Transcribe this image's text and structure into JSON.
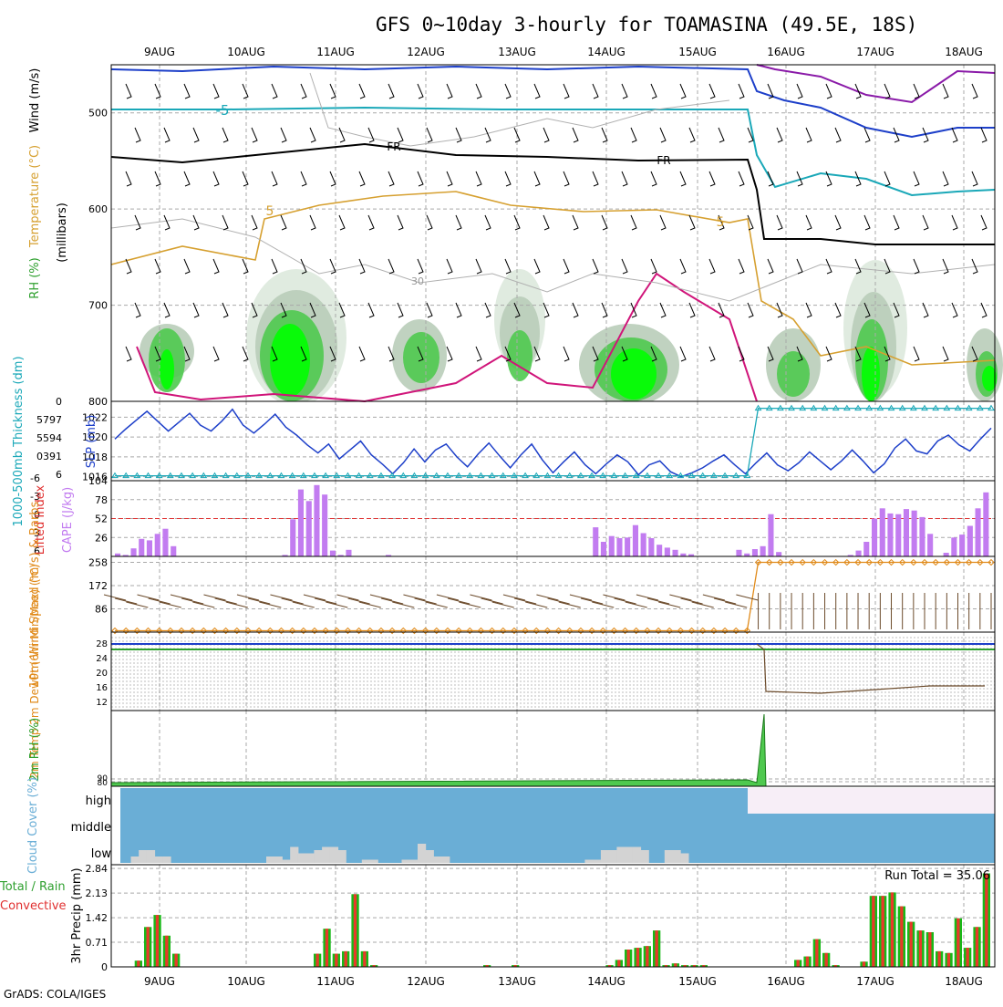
{
  "title": "GFS 0~10day 3-hourly for TOAMASINA (49.5E, 18S)",
  "footer": "GrADS: COLA/IGES",
  "colors": {
    "grid": "#a9a9a9",
    "temp_blue": "#1d3fc9",
    "cyan": "#1aa8b8",
    "orange": "#d6a030",
    "magenta": "#d0157a",
    "purple": "#8a1aa8",
    "cape": "#c27cf0",
    "precip_green": "#18b918",
    "precip_red": "#e83a2a",
    "rh_bright": "#00ff00",
    "rh_mid": "#4fc94f",
    "rh_gray": "#b9cdb9",
    "rh_light": "#dde9dd",
    "cloud_blue": "#6aaed6",
    "cloud_gray": "#d3d3d3",
    "cloud_pink": "#f7eef7",
    "wind_orange": "#e08a1a",
    "barb_brown": "#6b4a2a"
  },
  "chart_data": [
    {
      "type": "line",
      "panel": "upper-air",
      "title": "",
      "ylabel": "(millibars)",
      "side_labels": [
        "Wind (m/s)",
        "Temperature (°C)",
        "RH (%)"
      ],
      "x": [
        "9AUG",
        "10AUG",
        "11AUG",
        "12AUG",
        "13AUG",
        "14AUG",
        "15AUG",
        "16AUG",
        "17AUG",
        "18AUG"
      ],
      "yticks": [
        "500",
        "600",
        "700",
        "800"
      ],
      "ylim": [
        800,
        450
      ],
      "contour_labels": [
        "-5",
        "FR",
        "FR",
        "5",
        "5",
        "30"
      ]
    },
    {
      "type": "line",
      "panel": "slp-thickness",
      "ylabel": "SLP (mb)",
      "ylabel2": "1000-500mb Thickness (dm)",
      "yticks": [
        "1016",
        "1018",
        "1020",
        "1022"
      ],
      "ylim": [
        1015.6,
        1023.6
      ],
      "yticks2": [
        "0",
        "5797",
        "5594",
        "0391",
        "6"
      ],
      "series": [
        {
          "name": "SLP",
          "values": [
            1019.8,
            1020.8,
            1021.7,
            1022.6,
            1021.6,
            1020.6,
            1021.5,
            1022.4,
            1021.2,
            1020.6,
            1021.6,
            1022.8,
            1021.2,
            1020.4,
            1021.3,
            1022.3,
            1021.0,
            1020.2,
            1019.2,
            1018.4,
            1019.3,
            1017.8,
            1018.7,
            1019.6,
            1018.2,
            1017.3,
            1016.3,
            1017.4,
            1018.8,
            1017.5,
            1018.7,
            1019.3,
            1018.0,
            1017.0,
            1018.3,
            1019.4,
            1018.1,
            1016.9,
            1018.2,
            1019.3,
            1017.7,
            1016.4,
            1017.5,
            1018.5,
            1017.2,
            1016.3,
            1017.3,
            1018.2,
            1017.5,
            1016.2,
            1017.2,
            1017.6,
            1016.5,
            1016.0,
            1016.4,
            1016.9,
            1017.6,
            1018.2,
            1017.2,
            1016.3,
            1017.4,
            1018.4,
            1017.2,
            1016.6,
            1017.4,
            1018.5,
            1017.6,
            1016.7,
            1017.6,
            1018.7,
            1017.6,
            1016.4,
            1017.3,
            1018.9,
            1019.8,
            1018.6,
            1018.3,
            1019.6,
            1020.2,
            1019.2,
            1018.6,
            1019.8,
            1020.9
          ]
        },
        {
          "name": "Thickness",
          "values_stage1": 1016.1,
          "values_stage2": 1022.9,
          "jump_index": 58
        }
      ]
    },
    {
      "type": "bar",
      "panel": "cape-li",
      "ylabel": "CAPE (J/kg)",
      "ylabel2": "Lifted Index",
      "yticks": [
        "26",
        "52",
        "78",
        "104"
      ],
      "yticks2": [
        "6",
        "3",
        "0",
        "-3",
        "-6"
      ],
      "ylim": [
        0,
        104
      ],
      "values": [
        4,
        2,
        11,
        24,
        22,
        31,
        38,
        14,
        0,
        0,
        0,
        0,
        0,
        0,
        0,
        0,
        0,
        0,
        0,
        0,
        0,
        2,
        51,
        92,
        76,
        98,
        85,
        8,
        2,
        9,
        0,
        0,
        0,
        0,
        2,
        0,
        0,
        0,
        0,
        0,
        0,
        0,
        0,
        0,
        0,
        0,
        0,
        0,
        0,
        0,
        0,
        0,
        0,
        0,
        0,
        0,
        0,
        0,
        0,
        0,
        40,
        20,
        28,
        25,
        26,
        43,
        32,
        25,
        16,
        12,
        9,
        4,
        3,
        0,
        0,
        0,
        0,
        0,
        9,
        4,
        10,
        14,
        58,
        6,
        0,
        0,
        0,
        0,
        0,
        0,
        0,
        0,
        2,
        8,
        20,
        52,
        66,
        59,
        58,
        65,
        63,
        54,
        31,
        0,
        5,
        26,
        30,
        42,
        66,
        88
      ],
      "li_markers": [
        0,
        0,
        0,
        0,
        0,
        0,
        0,
        0,
        0,
        0,
        0,
        0,
        0,
        0,
        0,
        0,
        0,
        0,
        0,
        0,
        0,
        0,
        0,
        0,
        0,
        0,
        0,
        0,
        0,
        0,
        0,
        0,
        0,
        0,
        0,
        0,
        0,
        0,
        0,
        0,
        0,
        0,
        0,
        0,
        0,
        0,
        0,
        0,
        0,
        0,
        0,
        0,
        0,
        0,
        0,
        0,
        0,
        0,
        0,
        0,
        0,
        0,
        0,
        0,
        0,
        0,
        0,
        0,
        0,
        0,
        0,
        0,
        0,
        0,
        0,
        0,
        0,
        0,
        0,
        0,
        0,
        0,
        0,
        0,
        0,
        0,
        0,
        0,
        0,
        0,
        0,
        0,
        0,
        0,
        0,
        0,
        0,
        0,
        0,
        0,
        0,
        0,
        0,
        0,
        0,
        0,
        0,
        0,
        0,
        0,
        0
      ]
    },
    {
      "type": "line",
      "panel": "wind10m",
      "ylabel": "10m Wind Speed (m/s) & Barbs",
      "yticks": [
        "86",
        "172",
        "258"
      ],
      "ylim": [
        0,
        280
      ],
      "series": [
        {
          "name": "Speed",
          "values_stage1": 5,
          "values_stage2": 258,
          "jump_index": 58
        }
      ]
    },
    {
      "type": "line",
      "panel": "temp2m",
      "ylabel": "2m Temp 2m DewPt (6hr Min/Max) (°C)",
      "yticks": [
        "12",
        "16",
        "20",
        "24",
        "28"
      ]
    },
    {
      "type": "area",
      "panel": "rh2m",
      "ylabel": "2m RH (%)",
      "yticks": [
        "80",
        "90"
      ]
    },
    {
      "type": "bar",
      "panel": "cloud",
      "ylabel": "Cloud Cover (%)",
      "levels": [
        "high",
        "middle",
        "low"
      ],
      "low_values": [
        0,
        0,
        10,
        20,
        20,
        10,
        10,
        0,
        0,
        0,
        0,
        0,
        0,
        0,
        0,
        0,
        0,
        0,
        0,
        10,
        10,
        5,
        25,
        15,
        15,
        20,
        25,
        25,
        20,
        0,
        0,
        5,
        5,
        0,
        0,
        0,
        5,
        5,
        30,
        20,
        10,
        10,
        0,
        0,
        0,
        0,
        0,
        0,
        0,
        0,
        0,
        0,
        0,
        0,
        0,
        0,
        0,
        0,
        0,
        5,
        5,
        20,
        20,
        25,
        25,
        25,
        20,
        0,
        0,
        20,
        20,
        15,
        0,
        0,
        0,
        0,
        0,
        0,
        0,
        0,
        0,
        0,
        0,
        0,
        0,
        0,
        0,
        0,
        0,
        0,
        0,
        0,
        0,
        0,
        0,
        0,
        0,
        0,
        0,
        0,
        0,
        0,
        0,
        0,
        0,
        0,
        0,
        0,
        0,
        0
      ]
    },
    {
      "type": "bar",
      "panel": "precip",
      "ylabel": "3hr Precip (mm)",
      "side_labels": [
        "Total / Rain",
        "Convective"
      ],
      "annotation": "Run Total = 35.06",
      "yticks": [
        "0",
        "0.71",
        "1.42",
        "2.13",
        "2.84"
      ],
      "ylim": [
        0,
        2.95
      ],
      "values": [
        0,
        0,
        0.18,
        1.15,
        1.5,
        0.9,
        0.38,
        0,
        0,
        0,
        0,
        0,
        0,
        0,
        0,
        0,
        0,
        0,
        0,
        0,
        0,
        0.38,
        1.1,
        0.38,
        0.45,
        2.1,
        0.45,
        0.05,
        0,
        0,
        0,
        0,
        0,
        0,
        0,
        0,
        0,
        0,
        0,
        0.05,
        0,
        0,
        0.05,
        0,
        0,
        0,
        0,
        0,
        0,
        0,
        0,
        0,
        0.05,
        0.2,
        0.5,
        0.55,
        0.6,
        1.05,
        0.05,
        0.1,
        0.05,
        0.05,
        0.05,
        0,
        0,
        0,
        0,
        0,
        0,
        0,
        0,
        0,
        0.2,
        0.3,
        0.8,
        0.4,
        0.05,
        0,
        0,
        0.15,
        2.05,
        2.05,
        2.15,
        1.75,
        1.3,
        1.05,
        1.0,
        0.45,
        0.4,
        1.4,
        0.55,
        1.15,
        2.7
      ],
      "xticks": [
        "9AUG",
        "10AUG",
        "11AUG",
        "12AUG",
        "13AUG",
        "14AUG",
        "15AUG",
        "16AUG",
        "17AUG",
        "18AUG"
      ]
    }
  ]
}
